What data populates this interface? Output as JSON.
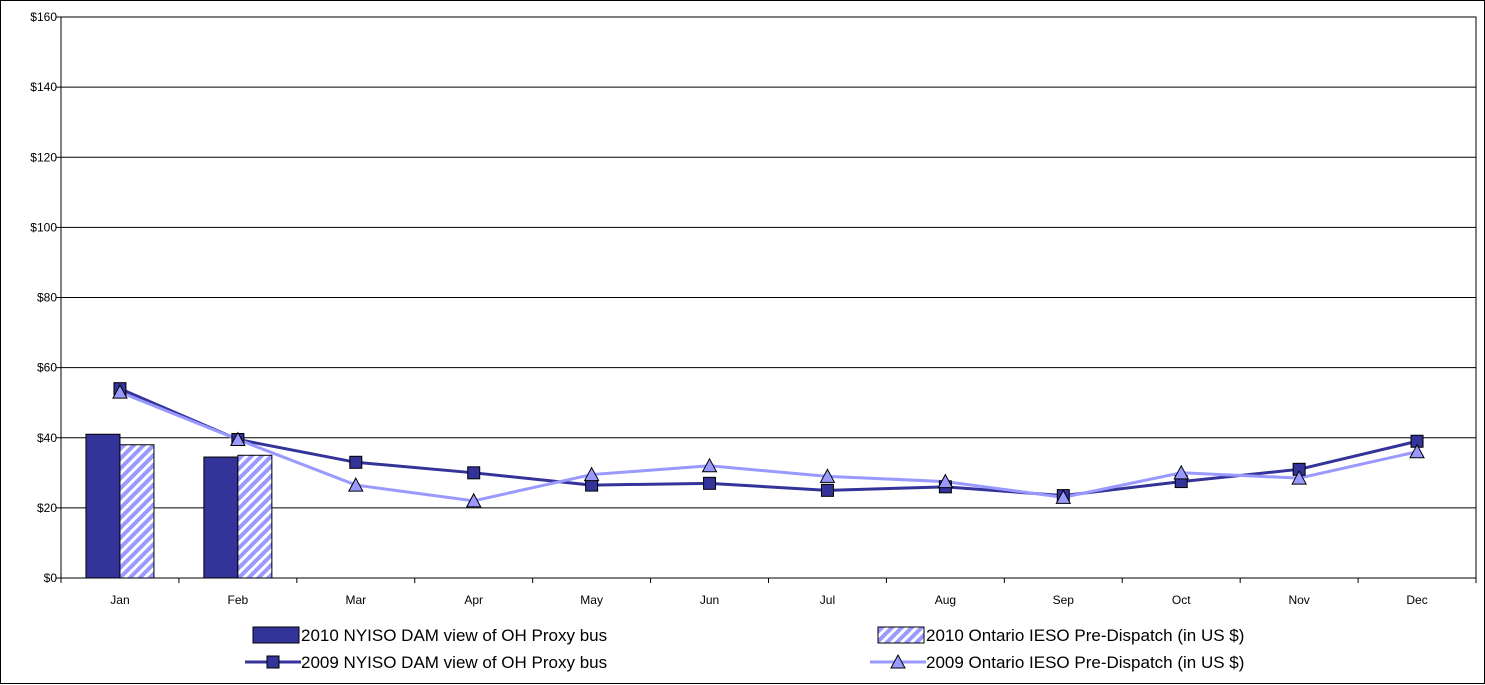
{
  "chart_data": {
    "type": "bar",
    "categories": [
      "Jan",
      "Feb",
      "Mar",
      "Apr",
      "May",
      "Jun",
      "Jul",
      "Aug",
      "Sep",
      "Oct",
      "Nov",
      "Dec"
    ],
    "ylim": [
      0,
      160
    ],
    "yticks": [
      0,
      20,
      40,
      60,
      80,
      100,
      120,
      140,
      160
    ],
    "ytick_labels": [
      "$0",
      "$20",
      "$40",
      "$60",
      "$80",
      "$100",
      "$120",
      "$140",
      "$160"
    ],
    "grid": true,
    "legend_position": "bottom",
    "series": [
      {
        "name": "2010 NYISO DAM view of OH Proxy bus",
        "kind": "bar",
        "style": "solid",
        "color": "#333399",
        "values": [
          41,
          34.5,
          null,
          null,
          null,
          null,
          null,
          null,
          null,
          null,
          null,
          null
        ]
      },
      {
        "name": "2010 Ontario IESO Pre-Dispatch (in US $)",
        "kind": "bar",
        "style": "hatched",
        "color": "#9999ff",
        "values": [
          38,
          35,
          null,
          null,
          null,
          null,
          null,
          null,
          null,
          null,
          null,
          null
        ]
      },
      {
        "name": "2009 NYISO DAM view of OH Proxy bus",
        "kind": "line",
        "marker": "square",
        "color": "#333399",
        "values": [
          54,
          39.5,
          33,
          30,
          26.5,
          27,
          25,
          26,
          23.5,
          27.5,
          31,
          39
        ]
      },
      {
        "name": "2009 Ontario IESO Pre-Dispatch (in US $)",
        "kind": "line",
        "marker": "triangle",
        "color": "#9999ff",
        "values": [
          53,
          39.5,
          26.5,
          22,
          29.5,
          32,
          29,
          27.5,
          23,
          30,
          28.5,
          36
        ]
      }
    ]
  }
}
